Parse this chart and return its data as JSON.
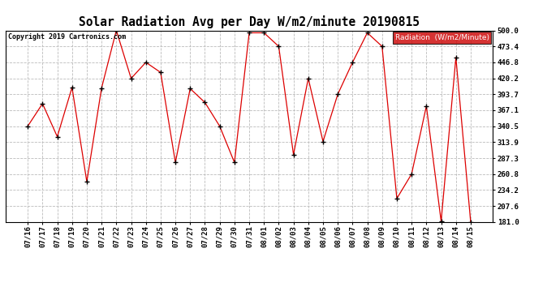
{
  "title": "Solar Radiation Avg per Day W/m2/minute 20190815",
  "copyright": "Copyright 2019 Cartronics.com",
  "legend_label": "Radiation  (W/m2/Minute)",
  "dates": [
    "07/16",
    "07/17",
    "07/18",
    "07/19",
    "07/20",
    "07/21",
    "07/22",
    "07/23",
    "07/24",
    "07/25",
    "07/26",
    "07/27",
    "07/28",
    "07/29",
    "07/30",
    "07/31",
    "08/01",
    "08/02",
    "08/03",
    "08/04",
    "08/05",
    "08/06",
    "08/07",
    "08/08",
    "08/09",
    "08/10",
    "08/11",
    "08/12",
    "08/13",
    "08/14",
    "08/15"
  ],
  "values": [
    340.5,
    378.0,
    323.0,
    405.0,
    248.0,
    404.0,
    500.0,
    420.0,
    446.8,
    430.0,
    280.0,
    403.0,
    380.0,
    340.5,
    280.0,
    496.0,
    496.0,
    473.4,
    293.0,
    420.2,
    315.0,
    393.7,
    446.8,
    496.0,
    473.4,
    220.0,
    260.8,
    374.0,
    182.0,
    455.0,
    181.0
  ],
  "ylim_min": 181.0,
  "ylim_max": 500.0,
  "yticks": [
    181.0,
    207.6,
    234.2,
    260.8,
    287.3,
    313.9,
    340.5,
    367.1,
    393.7,
    420.2,
    446.8,
    473.4,
    500.0
  ],
  "line_color": "#dd0000",
  "marker_color": "#000000",
  "grid_color": "#bbbbbb",
  "bg_color": "#ffffff",
  "title_fontsize": 10.5,
  "copyright_fontsize": 6.0,
  "tick_fontsize": 6.5,
  "legend_bg": "#cc0000",
  "legend_text_color": "white",
  "legend_fontsize": 6.5
}
